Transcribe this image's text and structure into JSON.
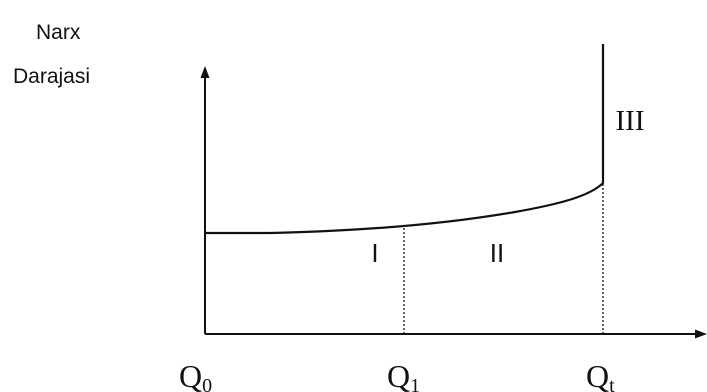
{
  "y_axis": {
    "label_line1": "Narx",
    "label_line2": "Darajasi"
  },
  "x_axis": {
    "ticks": [
      {
        "base": "Q",
        "sub": "0"
      },
      {
        "base": "Q",
        "sub": "1"
      },
      {
        "base": "Q",
        "sub": "t"
      }
    ]
  },
  "regions": {
    "region_1": "I",
    "region_2": "II",
    "region_3": "III"
  },
  "colors": {
    "line": "#111111",
    "background": "#ffffff"
  }
}
